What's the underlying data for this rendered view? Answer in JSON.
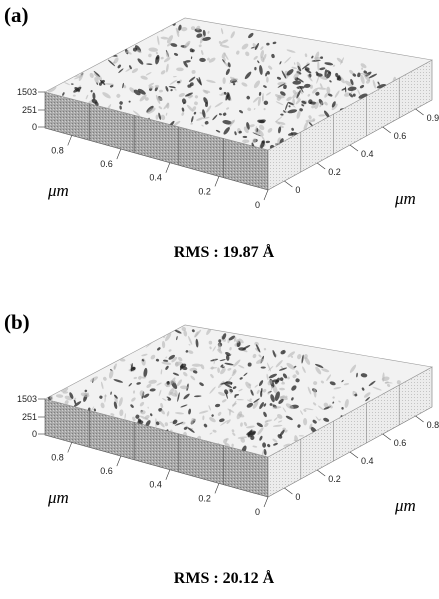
{
  "panels": [
    {
      "label": "(a)",
      "z_ticks": [
        "1503",
        "251",
        "0"
      ],
      "x_ticks": [
        "0.8",
        "0.6",
        "0.4",
        "0.2",
        "0"
      ],
      "y_ticks": [
        "0",
        "0.2",
        "0.4",
        "0.6",
        "0.9"
      ],
      "x_unit": "μm",
      "y_unit": "μm",
      "caption": "RMS : 19.87 Å"
    },
    {
      "label": "(b)",
      "z_ticks": [
        "1503",
        "251",
        "0"
      ],
      "x_ticks": [
        "0.8",
        "0.6",
        "0.4",
        "0.2",
        "0"
      ],
      "y_ticks": [
        "0",
        "0.2",
        "0.4",
        "0.6",
        "0.8"
      ],
      "x_unit": "μm",
      "y_unit": "μm",
      "caption": "RMS : 20.12 Å"
    }
  ]
}
